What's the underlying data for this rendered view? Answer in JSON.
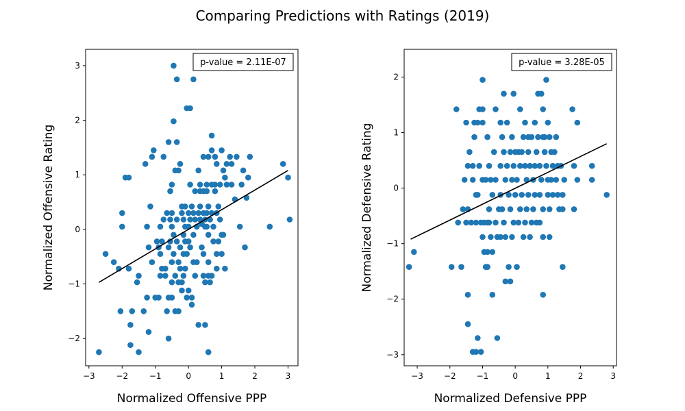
{
  "figure": {
    "title": "Comparing Predictions with Ratings (2019)"
  },
  "chart_data": [
    {
      "type": "scatter",
      "xlabel": "Normalized Offensive PPP",
      "ylabel": "Normalized Offensive Rating",
      "xlim": [
        -3.1,
        3.3
      ],
      "ylim": [
        -2.5,
        3.3
      ],
      "xticks": [
        -3,
        -2,
        -1,
        0,
        1,
        2,
        3
      ],
      "yticks": [
        -2,
        -1,
        0,
        1,
        2,
        3
      ],
      "annotation": "p-value = 2.11E-07",
      "annotation_location": "top-right",
      "point_color": "#1f77b4",
      "line_color": "#000000",
      "fit_line": [
        [
          -2.7,
          -0.97
        ],
        [
          3.0,
          1.08
        ]
      ],
      "points": [
        [
          -2.7,
          -2.25
        ],
        [
          -2.5,
          -0.45
        ],
        [
          -2.25,
          -0.6
        ],
        [
          -2.1,
          -0.72
        ],
        [
          -2.05,
          -1.5
        ],
        [
          -2.0,
          0.3
        ],
        [
          -2.0,
          0.05
        ],
        [
          -1.9,
          0.95
        ],
        [
          -1.8,
          0.95
        ],
        [
          -1.8,
          -0.72
        ],
        [
          -1.75,
          -1.75
        ],
        [
          -1.75,
          -2.12
        ],
        [
          -1.7,
          -1.5
        ],
        [
          -1.55,
          -0.97
        ],
        [
          -1.5,
          -2.25
        ],
        [
          -1.5,
          -0.85
        ],
        [
          -1.35,
          -1.5
        ],
        [
          -1.3,
          1.2
        ],
        [
          -1.25,
          0.05
        ],
        [
          -1.25,
          -1.25
        ],
        [
          -1.2,
          -1.88
        ],
        [
          -1.2,
          -0.33
        ],
        [
          -1.15,
          0.42
        ],
        [
          -1.1,
          -0.6
        ],
        [
          -1.1,
          1.33
        ],
        [
          -1.05,
          1.45
        ],
        [
          -1.0,
          -1.25
        ],
        [
          -0.95,
          -0.22
        ],
        [
          -0.9,
          -0.33
        ],
        [
          -0.9,
          -1.25
        ],
        [
          -0.85,
          0.05
        ],
        [
          -0.85,
          -0.85
        ],
        [
          -0.85,
          -0.45
        ],
        [
          -0.8,
          -0.72
        ],
        [
          -0.8,
          -0.22
        ],
        [
          -0.75,
          0.18
        ],
        [
          -0.75,
          1.33
        ],
        [
          -0.7,
          -0.85
        ],
        [
          -0.7,
          -0.72
        ],
        [
          -0.65,
          0.3
        ],
        [
          -0.65,
          -1.5
        ],
        [
          -0.6,
          1.6
        ],
        [
          -0.6,
          -0.33
        ],
        [
          -0.6,
          -1.25
        ],
        [
          -0.6,
          -2.0
        ],
        [
          -0.55,
          0.18
        ],
        [
          -0.55,
          -0.22
        ],
        [
          -0.55,
          0.7
        ],
        [
          -0.5,
          0.3
        ],
        [
          -0.5,
          -0.6
        ],
        [
          -0.5,
          -0.97
        ],
        [
          -0.5,
          -1.25
        ],
        [
          -0.5,
          0.05
        ],
        [
          -0.5,
          0.82
        ],
        [
          -0.45,
          3.0
        ],
        [
          -0.45,
          1.98
        ],
        [
          -0.45,
          -0.1
        ],
        [
          -0.45,
          -0.45
        ],
        [
          -0.4,
          -0.85
        ],
        [
          -0.4,
          -1.5
        ],
        [
          -0.4,
          1.08
        ],
        [
          -0.35,
          2.75
        ],
        [
          -0.35,
          1.6
        ],
        [
          -0.35,
          0.18
        ],
        [
          -0.35,
          -0.22
        ],
        [
          -0.3,
          -0.97
        ],
        [
          -0.3,
          -1.5
        ],
        [
          -0.3,
          -0.6
        ],
        [
          -0.3,
          1.08
        ],
        [
          -0.25,
          1.2
        ],
        [
          -0.25,
          -0.33
        ],
        [
          -0.25,
          -0.72
        ],
        [
          -0.2,
          0.3
        ],
        [
          -0.2,
          -0.97
        ],
        [
          -0.2,
          -1.12
        ],
        [
          -0.2,
          0.42
        ],
        [
          -0.15,
          0.18
        ],
        [
          -0.15,
          -0.1
        ],
        [
          -0.15,
          -0.45
        ],
        [
          -0.15,
          -0.85
        ],
        [
          -0.1,
          0.05
        ],
        [
          -0.1,
          -0.22
        ],
        [
          -0.1,
          -0.72
        ],
        [
          -0.1,
          0.42
        ],
        [
          -0.05,
          2.22
        ],
        [
          -0.05,
          -0.45
        ],
        [
          -0.05,
          -1.25
        ],
        [
          0.0,
          0.3
        ],
        [
          0.0,
          -0.22
        ],
        [
          0.0,
          0.05
        ],
        [
          0.0,
          -1.12
        ],
        [
          0.05,
          2.22
        ],
        [
          0.05,
          0.82
        ],
        [
          0.05,
          0.18
        ],
        [
          0.05,
          -0.33
        ],
        [
          0.1,
          -1.25
        ],
        [
          0.1,
          -1.38
        ],
        [
          0.1,
          0.42
        ],
        [
          0.15,
          2.75
        ],
        [
          0.15,
          0.3
        ],
        [
          0.15,
          -0.1
        ],
        [
          0.15,
          -0.6
        ],
        [
          0.2,
          -0.85
        ],
        [
          0.2,
          0.18
        ],
        [
          0.2,
          0.7
        ],
        [
          0.25,
          0.05
        ],
        [
          0.25,
          -0.6
        ],
        [
          0.3,
          1.08
        ],
        [
          0.3,
          0.3
        ],
        [
          0.3,
          -1.75
        ],
        [
          0.35,
          0.18
        ],
        [
          0.35,
          0.82
        ],
        [
          0.35,
          0.42
        ],
        [
          0.35,
          0.7
        ],
        [
          0.4,
          -0.33
        ],
        [
          0.4,
          0.1
        ],
        [
          0.45,
          1.33
        ],
        [
          0.45,
          0.7
        ],
        [
          0.45,
          0.3
        ],
        [
          0.45,
          -0.45
        ],
        [
          0.45,
          -0.85
        ],
        [
          0.5,
          -1.75
        ],
        [
          0.5,
          0.18
        ],
        [
          0.5,
          0.05
        ],
        [
          0.5,
          -0.97
        ],
        [
          0.55,
          0.82
        ],
        [
          0.55,
          0.3
        ],
        [
          0.55,
          0.7
        ],
        [
          0.55,
          0.05
        ],
        [
          0.6,
          1.33
        ],
        [
          0.6,
          -0.1
        ],
        [
          0.6,
          0.42
        ],
        [
          0.6,
          -0.6
        ],
        [
          0.6,
          -0.85
        ],
        [
          0.6,
          -2.25
        ],
        [
          0.65,
          0.18
        ],
        [
          0.65,
          -0.97
        ],
        [
          0.7,
          1.72
        ],
        [
          0.7,
          1.45
        ],
        [
          0.7,
          0.82
        ],
        [
          0.7,
          0.3
        ],
        [
          0.7,
          -0.85
        ],
        [
          0.75,
          0.05
        ],
        [
          0.75,
          -0.22
        ],
        [
          0.8,
          0.82
        ],
        [
          0.8,
          0.7
        ],
        [
          0.8,
          1.33
        ],
        [
          0.85,
          1.2
        ],
        [
          0.85,
          0.3
        ],
        [
          0.85,
          -0.45
        ],
        [
          0.85,
          -0.72
        ],
        [
          0.9,
          0.42
        ],
        [
          0.9,
          -0.22
        ],
        [
          0.95,
          0.82
        ],
        [
          0.95,
          0.18
        ],
        [
          1.0,
          1.45
        ],
        [
          1.0,
          -0.1
        ],
        [
          1.0,
          -0.45
        ],
        [
          1.05,
          1.08
        ],
        [
          1.05,
          -0.1
        ],
        [
          1.1,
          0.95
        ],
        [
          1.1,
          -0.72
        ],
        [
          1.15,
          1.2
        ],
        [
          1.15,
          0.82
        ],
        [
          1.25,
          1.33
        ],
        [
          1.3,
          1.2
        ],
        [
          1.3,
          0.82
        ],
        [
          1.4,
          0.55
        ],
        [
          1.45,
          1.33
        ],
        [
          1.55,
          0.05
        ],
        [
          1.6,
          0.82
        ],
        [
          1.65,
          1.08
        ],
        [
          1.7,
          -0.33
        ],
        [
          1.75,
          0.58
        ],
        [
          1.8,
          0.95
        ],
        [
          1.85,
          1.33
        ],
        [
          2.45,
          0.05
        ],
        [
          2.85,
          1.2
        ],
        [
          3.0,
          0.95
        ],
        [
          3.05,
          0.18
        ]
      ]
    },
    {
      "type": "scatter",
      "xlabel": "Normalized Defensive PPP",
      "ylabel": "Normalized Defensive Rating",
      "xlim": [
        -3.4,
        3.1
      ],
      "ylim": [
        -3.2,
        2.5
      ],
      "xticks": [
        -3,
        -2,
        -1,
        0,
        1,
        2,
        3
      ],
      "yticks": [
        -3,
        -2,
        -1,
        0,
        1,
        2
      ],
      "annotation": "p-value = 3.28E-05",
      "annotation_location": "top-right",
      "point_color": "#1f77b4",
      "line_color": "#000000",
      "fit_line": [
        [
          -3.2,
          -0.92
        ],
        [
          2.8,
          0.8
        ]
      ],
      "points": [
        [
          -3.25,
          -1.42
        ],
        [
          -3.1,
          -1.15
        ],
        [
          -1.95,
          -1.42
        ],
        [
          -1.8,
          1.42
        ],
        [
          -1.75,
          -0.62
        ],
        [
          -1.65,
          -1.42
        ],
        [
          -1.6,
          -0.38
        ],
        [
          -1.55,
          0.15
        ],
        [
          -1.5,
          1.18
        ],
        [
          -1.5,
          -0.62
        ],
        [
          -1.45,
          0.4
        ],
        [
          -1.45,
          -0.38
        ],
        [
          -1.45,
          -1.92
        ],
        [
          -1.45,
          -2.45
        ],
        [
          -1.4,
          0.65
        ],
        [
          -1.35,
          -0.62
        ],
        [
          -1.3,
          0.4
        ],
        [
          -1.3,
          0.15
        ],
        [
          -1.3,
          -2.95
        ],
        [
          -1.25,
          1.18
        ],
        [
          -1.25,
          0.92
        ],
        [
          -1.2,
          -0.12
        ],
        [
          -1.2,
          -0.62
        ],
        [
          -1.2,
          -2.95
        ],
        [
          -1.15,
          1.18
        ],
        [
          -1.15,
          -0.12
        ],
        [
          -1.15,
          -2.7
        ],
        [
          -1.1,
          1.42
        ],
        [
          -1.1,
          0.4
        ],
        [
          -1.05,
          -0.62
        ],
        [
          -1.05,
          -2.95
        ],
        [
          -1.0,
          1.95
        ],
        [
          -1.0,
          1.42
        ],
        [
          -1.0,
          1.18
        ],
        [
          -1.0,
          0.15
        ],
        [
          -1.0,
          -0.88
        ],
        [
          -0.95,
          -0.62
        ],
        [
          -0.95,
          -1.15
        ],
        [
          -0.9,
          0.15
        ],
        [
          -0.9,
          -1.42
        ],
        [
          -0.85,
          0.92
        ],
        [
          -0.85,
          -0.62
        ],
        [
          -0.85,
          -1.15
        ],
        [
          -0.85,
          -1.42
        ],
        [
          -0.8,
          0.4
        ],
        [
          -0.8,
          -0.38
        ],
        [
          -0.8,
          -0.62
        ],
        [
          -0.75,
          0.15
        ],
        [
          -0.75,
          -0.88
        ],
        [
          -0.7,
          -0.12
        ],
        [
          -0.7,
          -1.92
        ],
        [
          -0.7,
          -1.15
        ],
        [
          -0.65,
          0.65
        ],
        [
          -0.6,
          1.42
        ],
        [
          -0.6,
          0.15
        ],
        [
          -0.6,
          -0.62
        ],
        [
          -0.55,
          -0.88
        ],
        [
          -0.55,
          -2.7
        ],
        [
          -0.5,
          -0.38
        ],
        [
          -0.45,
          1.18
        ],
        [
          -0.45,
          0.4
        ],
        [
          -0.45,
          -0.12
        ],
        [
          -0.45,
          -0.88
        ],
        [
          -0.4,
          0.92
        ],
        [
          -0.4,
          -0.38
        ],
        [
          -0.35,
          1.7
        ],
        [
          -0.35,
          0.65
        ],
        [
          -0.35,
          -0.62
        ],
        [
          -0.3,
          0.15
        ],
        [
          -0.3,
          -0.88
        ],
        [
          -0.3,
          -1.68
        ],
        [
          -0.25,
          0.4
        ],
        [
          -0.25,
          1.18
        ],
        [
          -0.2,
          -0.12
        ],
        [
          -0.2,
          -1.42
        ],
        [
          -0.15,
          0.65
        ],
        [
          -0.15,
          -0.38
        ],
        [
          -0.15,
          -1.68
        ],
        [
          -0.1,
          0.92
        ],
        [
          -0.1,
          0.15
        ],
        [
          -0.1,
          -0.88
        ],
        [
          -0.05,
          1.7
        ],
        [
          -0.05,
          0.4
        ],
        [
          -0.05,
          -0.62
        ],
        [
          0.0,
          0.65
        ],
        [
          0.0,
          -0.12
        ],
        [
          0.05,
          0.15
        ],
        [
          0.05,
          -1.42
        ],
        [
          0.1,
          0.65
        ],
        [
          0.1,
          -0.62
        ],
        [
          0.15,
          1.42
        ],
        [
          0.15,
          0.4
        ],
        [
          0.15,
          -0.38
        ],
        [
          0.2,
          0.65
        ],
        [
          0.2,
          -0.12
        ],
        [
          0.25,
          0.92
        ],
        [
          0.25,
          -0.88
        ],
        [
          0.3,
          1.18
        ],
        [
          0.3,
          0.4
        ],
        [
          0.3,
          -0.62
        ],
        [
          0.35,
          0.15
        ],
        [
          0.35,
          -0.38
        ],
        [
          0.4,
          0.92
        ],
        [
          0.4,
          0.65
        ],
        [
          0.4,
          -0.12
        ],
        [
          0.45,
          0.4
        ],
        [
          0.45,
          -0.88
        ],
        [
          0.5,
          0.92
        ],
        [
          0.5,
          -0.62
        ],
        [
          0.55,
          0.15
        ],
        [
          0.55,
          -0.38
        ],
        [
          0.6,
          1.18
        ],
        [
          0.6,
          0.4
        ],
        [
          0.6,
          -0.12
        ],
        [
          0.65,
          0.65
        ],
        [
          0.65,
          -0.62
        ],
        [
          0.7,
          1.7
        ],
        [
          0.7,
          0.92
        ],
        [
          0.75,
          0.4
        ],
        [
          0.75,
          -0.12
        ],
        [
          0.75,
          -0.62
        ],
        [
          0.8,
          1.7
        ],
        [
          0.8,
          0.15
        ],
        [
          0.85,
          1.42
        ],
        [
          0.85,
          0.92
        ],
        [
          0.85,
          -0.38
        ],
        [
          0.85,
          -0.88
        ],
        [
          0.85,
          -1.92
        ],
        [
          0.9,
          0.92
        ],
        [
          0.9,
          0.65
        ],
        [
          0.95,
          1.95
        ],
        [
          0.95,
          0.4
        ],
        [
          1.0,
          1.18
        ],
        [
          1.0,
          0.15
        ],
        [
          1.0,
          -0.12
        ],
        [
          1.05,
          0.92
        ],
        [
          1.05,
          -0.38
        ],
        [
          1.05,
          -0.88
        ],
        [
          1.1,
          0.65
        ],
        [
          1.1,
          0.15
        ],
        [
          1.15,
          0.4
        ],
        [
          1.15,
          -0.12
        ],
        [
          1.2,
          0.65
        ],
        [
          1.25,
          0.92
        ],
        [
          1.25,
          0.15
        ],
        [
          1.3,
          0.4
        ],
        [
          1.3,
          -0.12
        ],
        [
          1.35,
          -0.38
        ],
        [
          1.4,
          0.4
        ],
        [
          1.45,
          -0.12
        ],
        [
          1.45,
          -0.38
        ],
        [
          1.45,
          -1.42
        ],
        [
          1.5,
          0.15
        ],
        [
          1.75,
          1.42
        ],
        [
          1.8,
          0.4
        ],
        [
          1.8,
          -0.38
        ],
        [
          1.9,
          1.18
        ],
        [
          1.9,
          0.15
        ],
        [
          2.35,
          0.4
        ],
        [
          2.35,
          0.15
        ],
        [
          2.8,
          -0.12
        ]
      ]
    }
  ]
}
